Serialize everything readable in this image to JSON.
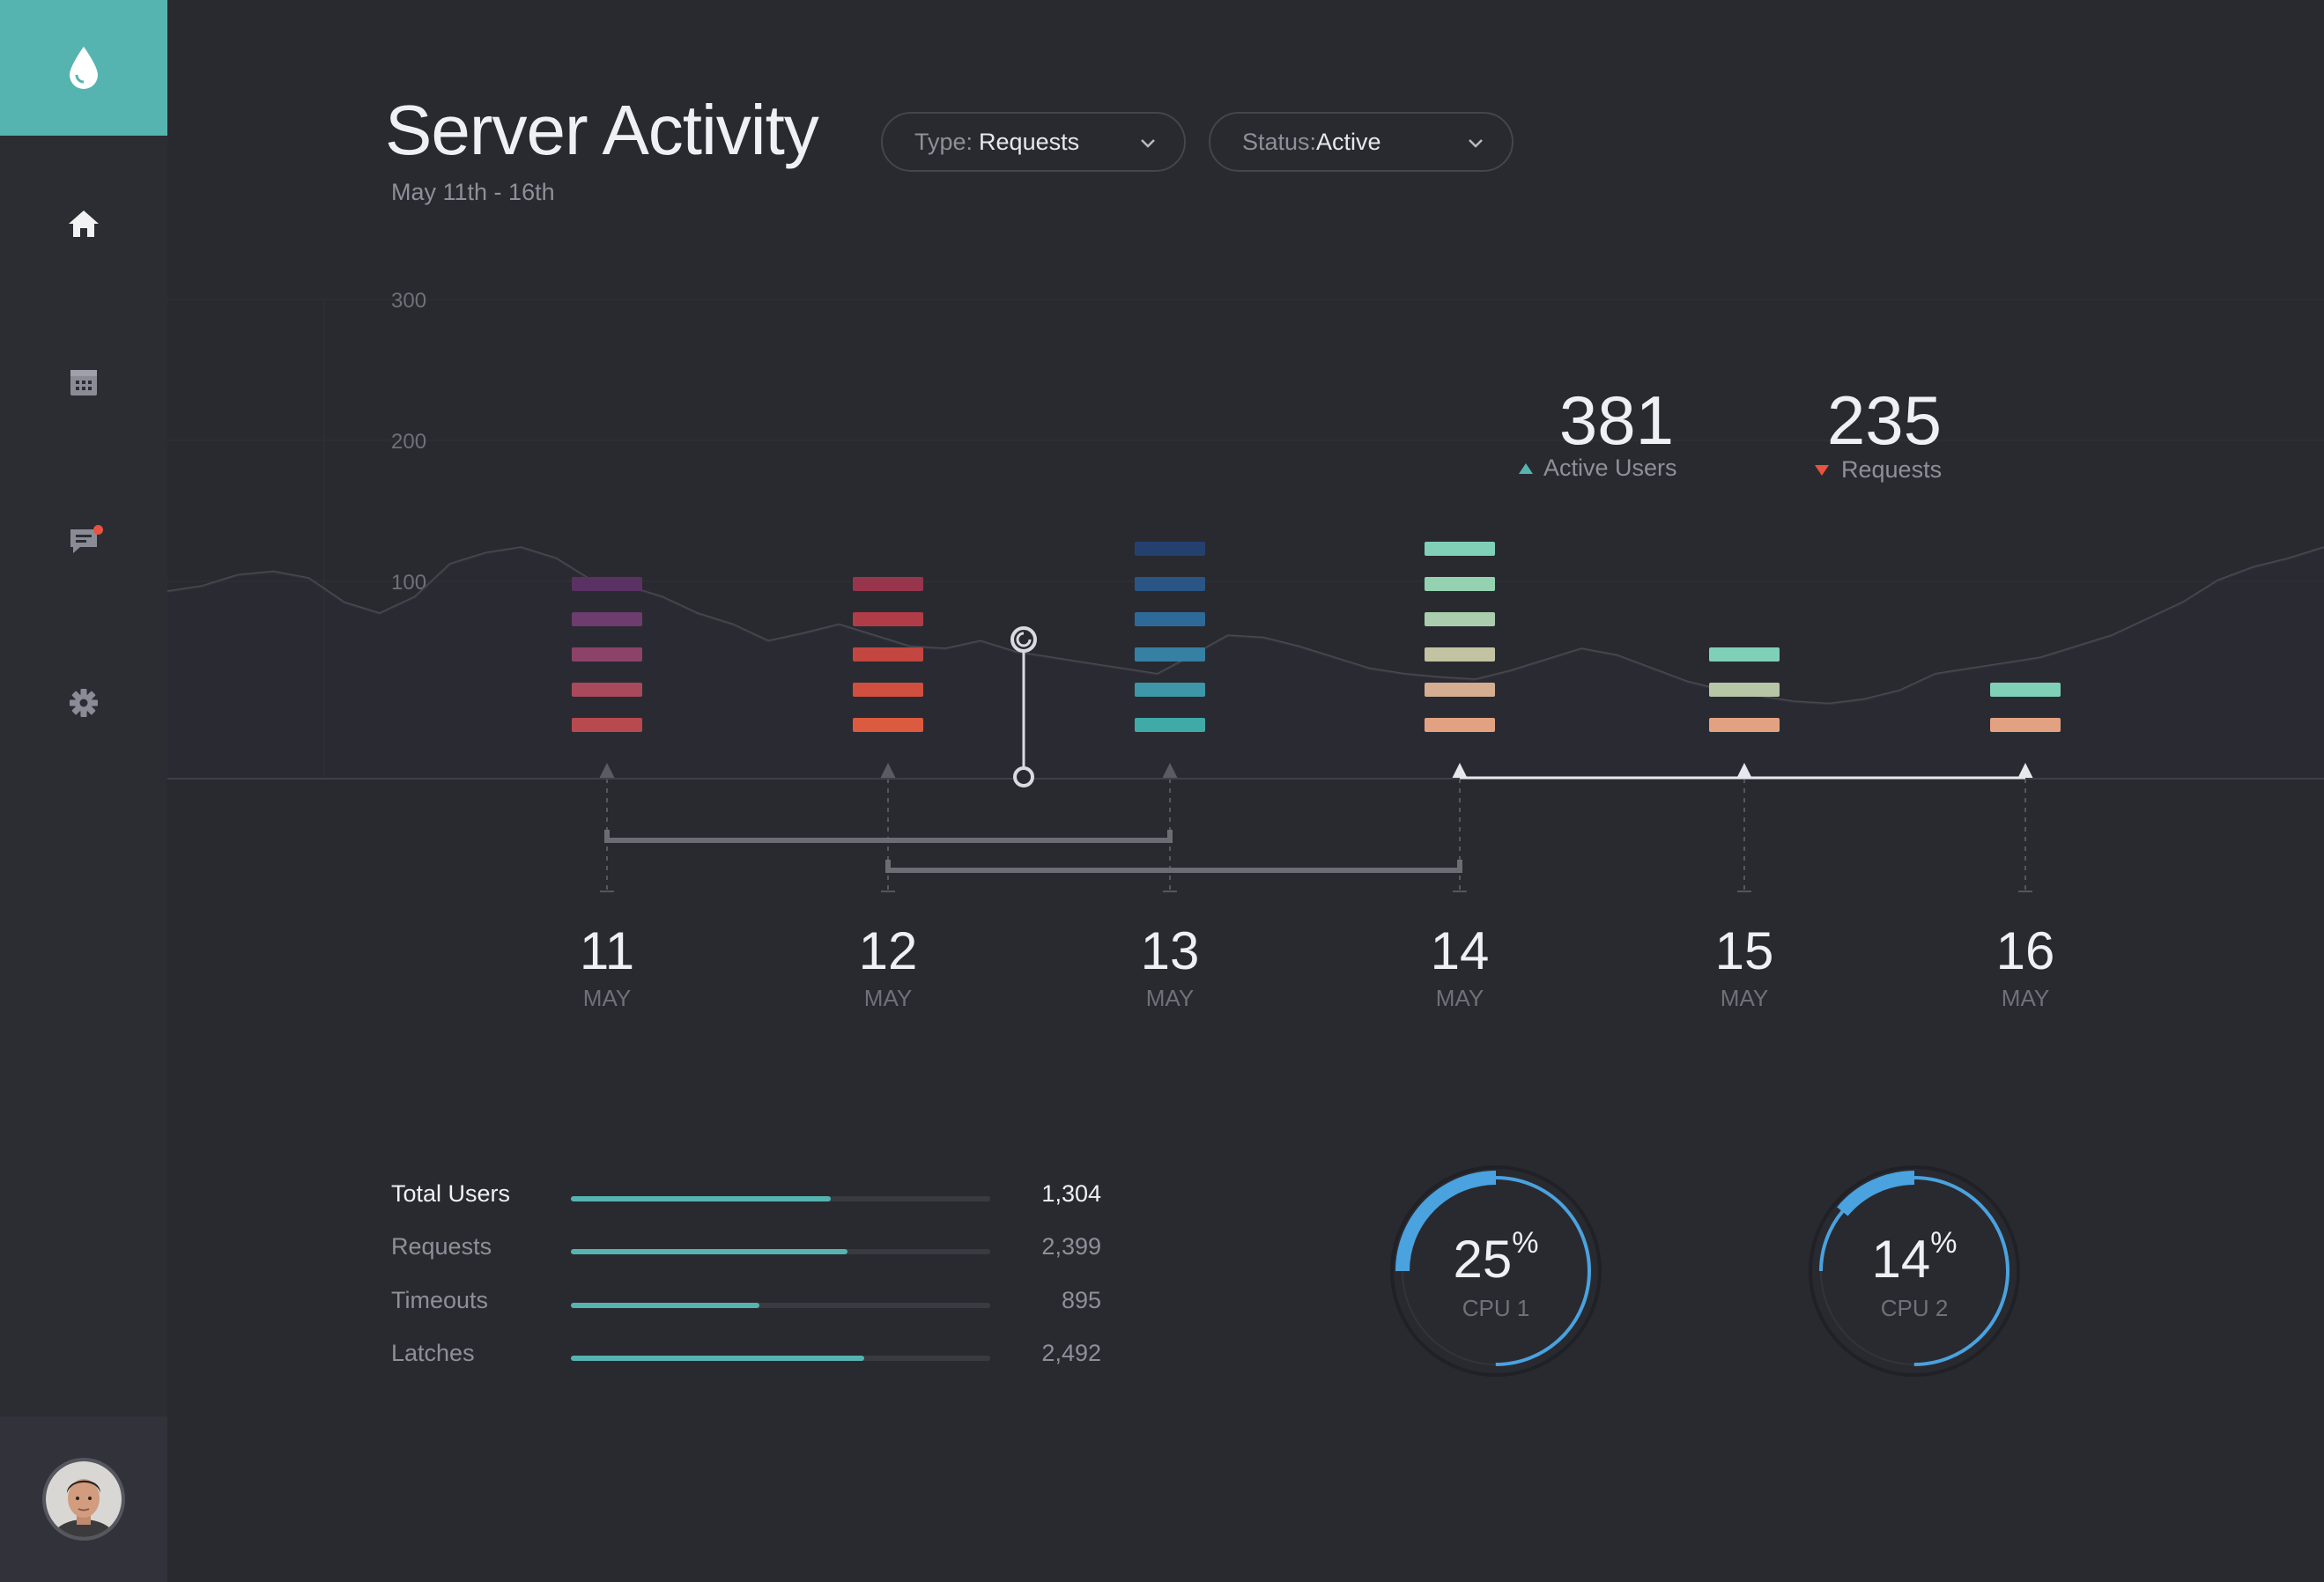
{
  "app": {
    "title": "Server Activity",
    "subtitle": "May 11th - 16th"
  },
  "sidebar": {
    "items": [
      {
        "name": "home",
        "icon": "home-icon",
        "active": true
      },
      {
        "name": "calendar",
        "icon": "calendar-icon"
      },
      {
        "name": "messages",
        "icon": "chat-icon",
        "notification": true
      },
      {
        "name": "settings",
        "icon": "gear-icon"
      }
    ],
    "logo_icon": "droplet-icon",
    "accent": "#56b4b0"
  },
  "filters": {
    "type": {
      "label": "Type:",
      "value": "Requests"
    },
    "status": {
      "label": "Status: ",
      "value": "Active"
    }
  },
  "stats": {
    "active_users": {
      "value": "381",
      "label": "Active Users",
      "trend": "up"
    },
    "requests": {
      "value": "235",
      "label": "Requests",
      "trend": "down"
    }
  },
  "chart_data": {
    "type": "bar",
    "y_ticks": [
      "300",
      "200",
      "100"
    ],
    "ylim": [
      0,
      300
    ],
    "days": [
      {
        "day": "11",
        "month": "MAY",
        "bars": 5,
        "colors": [
          "#5a3163",
          "#6e3c6e",
          "#8c4269",
          "#a84a5c",
          "#b84a4f"
        ]
      },
      {
        "day": "12",
        "month": "MAY",
        "bars": 5,
        "colors": [
          "#96354c",
          "#b03c47",
          "#c44640",
          "#d04f3e",
          "#dc5a3f"
        ]
      },
      {
        "day": "13",
        "month": "MAY",
        "bars": 6,
        "colors": [
          "#24406e",
          "#2a5585",
          "#2e6a98",
          "#3680a3",
          "#3d97a8",
          "#40aaa9"
        ]
      },
      {
        "day": "14",
        "month": "MAY",
        "bars": 6,
        "colors": [
          "#7fd0b6",
          "#94d1b0",
          "#aacdad",
          "#c1c3a2",
          "#d5ad90",
          "#e2a282"
        ]
      },
      {
        "day": "15",
        "month": "MAY",
        "bars": 3,
        "colors": [
          "#7fd0b6",
          "#b7c6a6",
          "#e2a282"
        ]
      },
      {
        "day": "16",
        "month": "MAY",
        "bars": 2,
        "colors": [
          "#7fd0b6",
          "#e2a282"
        ]
      }
    ],
    "background_line": [
      170,
      175,
      185,
      188,
      182,
      160,
      150,
      165,
      195,
      205,
      210,
      200,
      180,
      175,
      165,
      150,
      140,
      125,
      132,
      140,
      130,
      120,
      118,
      125,
      115,
      110,
      105,
      100,
      95,
      112,
      130,
      128,
      120,
      110,
      100,
      95,
      92,
      90,
      98,
      108,
      118,
      112,
      100,
      88,
      80,
      75,
      70,
      68,
      72,
      80,
      95,
      100,
      105,
      110,
      120,
      130,
      145,
      160,
      180,
      192,
      200,
      210
    ]
  },
  "metrics": [
    {
      "label": "Total Users",
      "value": "1,304",
      "fraction": 0.62
    },
    {
      "label": "Requests",
      "value": "2,399",
      "fraction": 0.66
    },
    {
      "label": "Timeouts",
      "value": "895",
      "fraction": 0.45
    },
    {
      "label": "Latches",
      "value": "2,492",
      "fraction": 0.7
    }
  ],
  "gauges": [
    {
      "value": "25",
      "unit": "%",
      "label": "CPU 1",
      "fraction": 0.25
    },
    {
      "value": "14",
      "unit": "%",
      "label": "CPU 2",
      "fraction": 0.14
    }
  ],
  "colors": {
    "teal": "#56b4b0",
    "blue": "#4aa2df",
    "red": "#e8533f"
  }
}
